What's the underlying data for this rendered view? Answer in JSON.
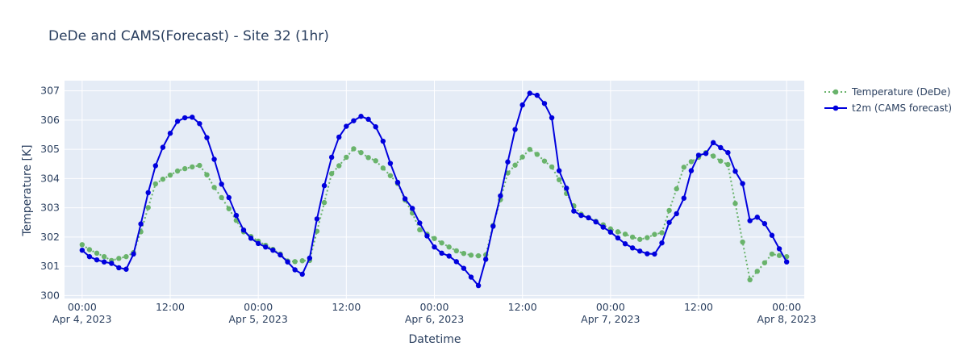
{
  "chart_data": {
    "type": "line",
    "title": "DeDe and CAMS(Forecast) - Site 32 (1hr)",
    "xlabel": "Datetime",
    "ylabel": "Temperature [K]",
    "ylim": [
      299.9,
      307.35
    ],
    "yticks": [
      300,
      301,
      302,
      303,
      304,
      305,
      306,
      307
    ],
    "xlim_hours": [
      -2.4,
      98.4
    ],
    "xticks": [
      {
        "hour": 0,
        "line1": "00:00",
        "line2": "Apr 4, 2023"
      },
      {
        "hour": 12,
        "line1": "12:00",
        "line2": ""
      },
      {
        "hour": 24,
        "line1": "00:00",
        "line2": "Apr 5, 2023"
      },
      {
        "hour": 36,
        "line1": "12:00",
        "line2": ""
      },
      {
        "hour": 48,
        "line1": "00:00",
        "line2": "Apr 6, 2023"
      },
      {
        "hour": 60,
        "line1": "12:00",
        "line2": ""
      },
      {
        "hour": 72,
        "line1": "00:00",
        "line2": "Apr 7, 2023"
      },
      {
        "hour": 84,
        "line1": "12:00",
        "line2": ""
      },
      {
        "hour": 96,
        "line1": "00:00",
        "line2": "Apr 8, 2023"
      }
    ],
    "grid": true,
    "legend_position": "top-right",
    "series": [
      {
        "name": "Temperature (DeDe)",
        "color": "#69b36b",
        "dash": "dotted",
        "values": [
          301.74,
          301.57,
          301.45,
          301.33,
          301.2,
          301.27,
          301.33,
          301.47,
          302.18,
          303.01,
          303.82,
          303.98,
          304.12,
          304.26,
          304.34,
          304.4,
          304.45,
          304.13,
          303.7,
          303.35,
          302.97,
          302.57,
          302.18,
          302.02,
          301.86,
          301.72,
          301.58,
          301.42,
          301.18,
          301.16,
          301.19,
          301.2,
          302.2,
          303.18,
          304.17,
          304.44,
          304.73,
          305.02,
          304.89,
          304.72,
          304.61,
          304.36,
          304.1,
          303.83,
          303.27,
          302.82,
          302.25,
          302.1,
          301.95,
          301.8,
          301.66,
          301.53,
          301.44,
          301.38,
          301.36,
          301.39,
          302.4,
          303.28,
          304.19,
          304.46,
          304.74,
          305.0,
          304.83,
          304.6,
          304.4,
          303.96,
          303.49,
          303.07,
          302.78,
          302.66,
          302.54,
          302.42,
          302.28,
          302.18,
          302.1,
          302.0,
          301.92,
          301.98,
          302.09,
          302.15,
          302.91,
          303.65,
          304.39,
          304.58,
          304.73,
          304.89,
          304.77,
          304.6,
          304.48,
          303.15,
          301.83,
          300.54,
          300.83,
          301.12,
          301.42,
          301.37,
          301.33
        ]
      },
      {
        "name": "t2m (CAMS forecast)",
        "color": "#0000dd",
        "dash": "solid",
        "values": [
          301.55,
          301.33,
          301.22,
          301.15,
          301.1,
          300.95,
          300.9,
          301.42,
          302.45,
          303.52,
          304.44,
          305.07,
          305.55,
          305.96,
          306.08,
          306.1,
          305.88,
          305.4,
          304.66,
          303.81,
          303.35,
          302.74,
          302.24,
          301.96,
          301.78,
          301.66,
          301.55,
          301.39,
          301.15,
          300.88,
          300.73,
          301.28,
          302.62,
          303.76,
          304.73,
          305.42,
          305.79,
          305.98,
          306.13,
          306.03,
          305.77,
          305.28,
          304.52,
          303.87,
          303.31,
          302.98,
          302.48,
          302.04,
          301.66,
          301.45,
          301.35,
          301.16,
          300.93,
          300.63,
          300.34,
          301.24,
          302.37,
          303.41,
          304.57,
          305.68,
          306.52,
          306.92,
          306.85,
          306.57,
          306.08,
          304.27,
          303.67,
          302.89,
          302.74,
          302.66,
          302.52,
          302.34,
          302.17,
          301.97,
          301.77,
          301.63,
          301.52,
          301.43,
          301.42,
          301.8,
          302.5,
          302.8,
          303.33,
          304.27,
          304.8,
          304.86,
          305.23,
          305.06,
          304.89,
          304.25,
          303.83,
          302.56,
          302.68,
          302.46,
          302.06,
          301.6,
          301.15
        ]
      }
    ]
  }
}
